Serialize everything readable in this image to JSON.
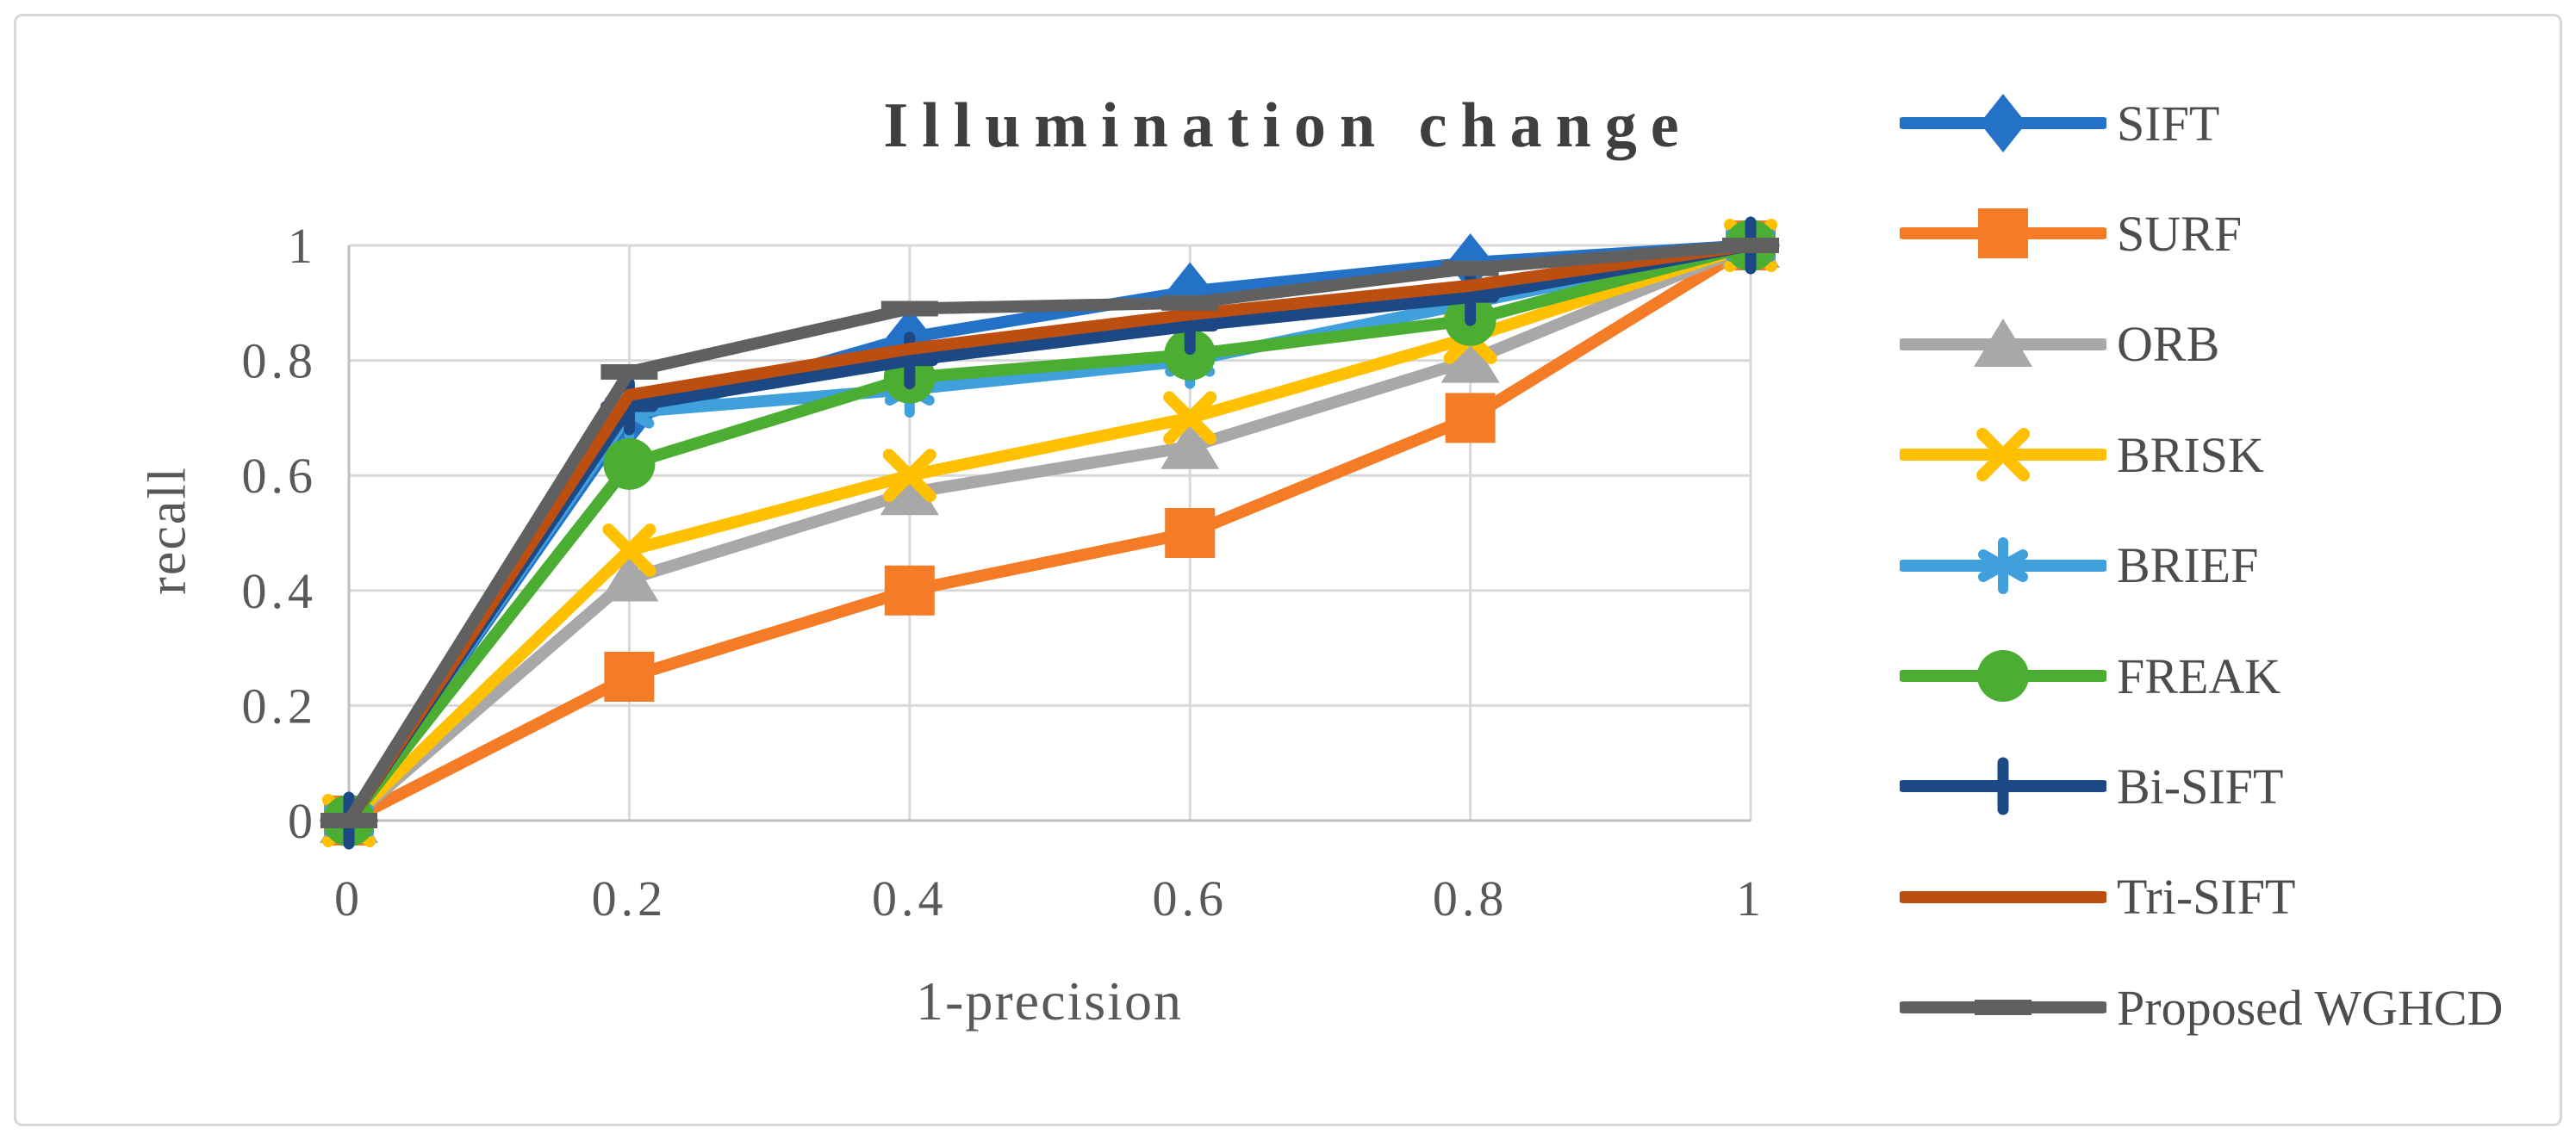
{
  "chart_data": {
    "type": "line",
    "title": "Illumination change",
    "xlabel": "1-precision",
    "ylabel": "recall",
    "x": [
      0,
      0.2,
      0.4,
      0.6,
      0.8,
      1
    ],
    "xtick_labels": [
      "0",
      "0.2",
      "0.4",
      "0.6",
      "0.8",
      "1"
    ],
    "yticks": [
      0,
      0.2,
      0.4,
      0.6,
      0.8,
      1
    ],
    "ytick_labels": [
      "0",
      "0.2",
      "0.4",
      "0.6",
      "0.8",
      "1"
    ],
    "xlim": [
      0,
      1
    ],
    "ylim": [
      0,
      1
    ],
    "grid": true,
    "legend_position": "right",
    "colors": {
      "axis": "#bfbfbf",
      "gridline": "#d9d9d9",
      "tick_text": "#595959",
      "title_text": "#3f3f3f",
      "legend_text": "#4d4d4d"
    },
    "series": [
      {
        "name": "SIFT",
        "color": "#2372c8",
        "marker": "diamond",
        "values": [
          0,
          0.7,
          0.84,
          0.92,
          0.97,
          1
        ]
      },
      {
        "name": "SURF",
        "color": "#f57c26",
        "marker": "square",
        "values": [
          0,
          0.25,
          0.4,
          0.5,
          0.7,
          1
        ]
      },
      {
        "name": "ORB",
        "color": "#a8a8a8",
        "marker": "triangle",
        "values": [
          0,
          0.42,
          0.57,
          0.65,
          0.8,
          1
        ]
      },
      {
        "name": "BRISK",
        "color": "#ffc000",
        "marker": "x",
        "values": [
          0,
          0.47,
          0.6,
          0.7,
          0.84,
          1
        ]
      },
      {
        "name": "BRIEF",
        "color": "#3fa0dc",
        "marker": "asterisk",
        "values": [
          0,
          0.71,
          0.75,
          0.8,
          0.9,
          1
        ]
      },
      {
        "name": "FREAK",
        "color": "#4cad33",
        "marker": "circle",
        "values": [
          0,
          0.62,
          0.77,
          0.81,
          0.87,
          1
        ]
      },
      {
        "name": "Bi-SIFT",
        "color": "#1c4886",
        "marker": "plus",
        "values": [
          0,
          0.72,
          0.8,
          0.86,
          0.91,
          1
        ]
      },
      {
        "name": "Tri-SIFT",
        "color": "#bc4e10",
        "marker": "none",
        "values": [
          0,
          0.74,
          0.82,
          0.88,
          0.93,
          1
        ]
      },
      {
        "name": "Proposed WGHCD",
        "color": "#606060",
        "marker": "dash",
        "values": [
          0,
          0.78,
          0.89,
          0.9,
          0.96,
          1
        ]
      }
    ]
  }
}
